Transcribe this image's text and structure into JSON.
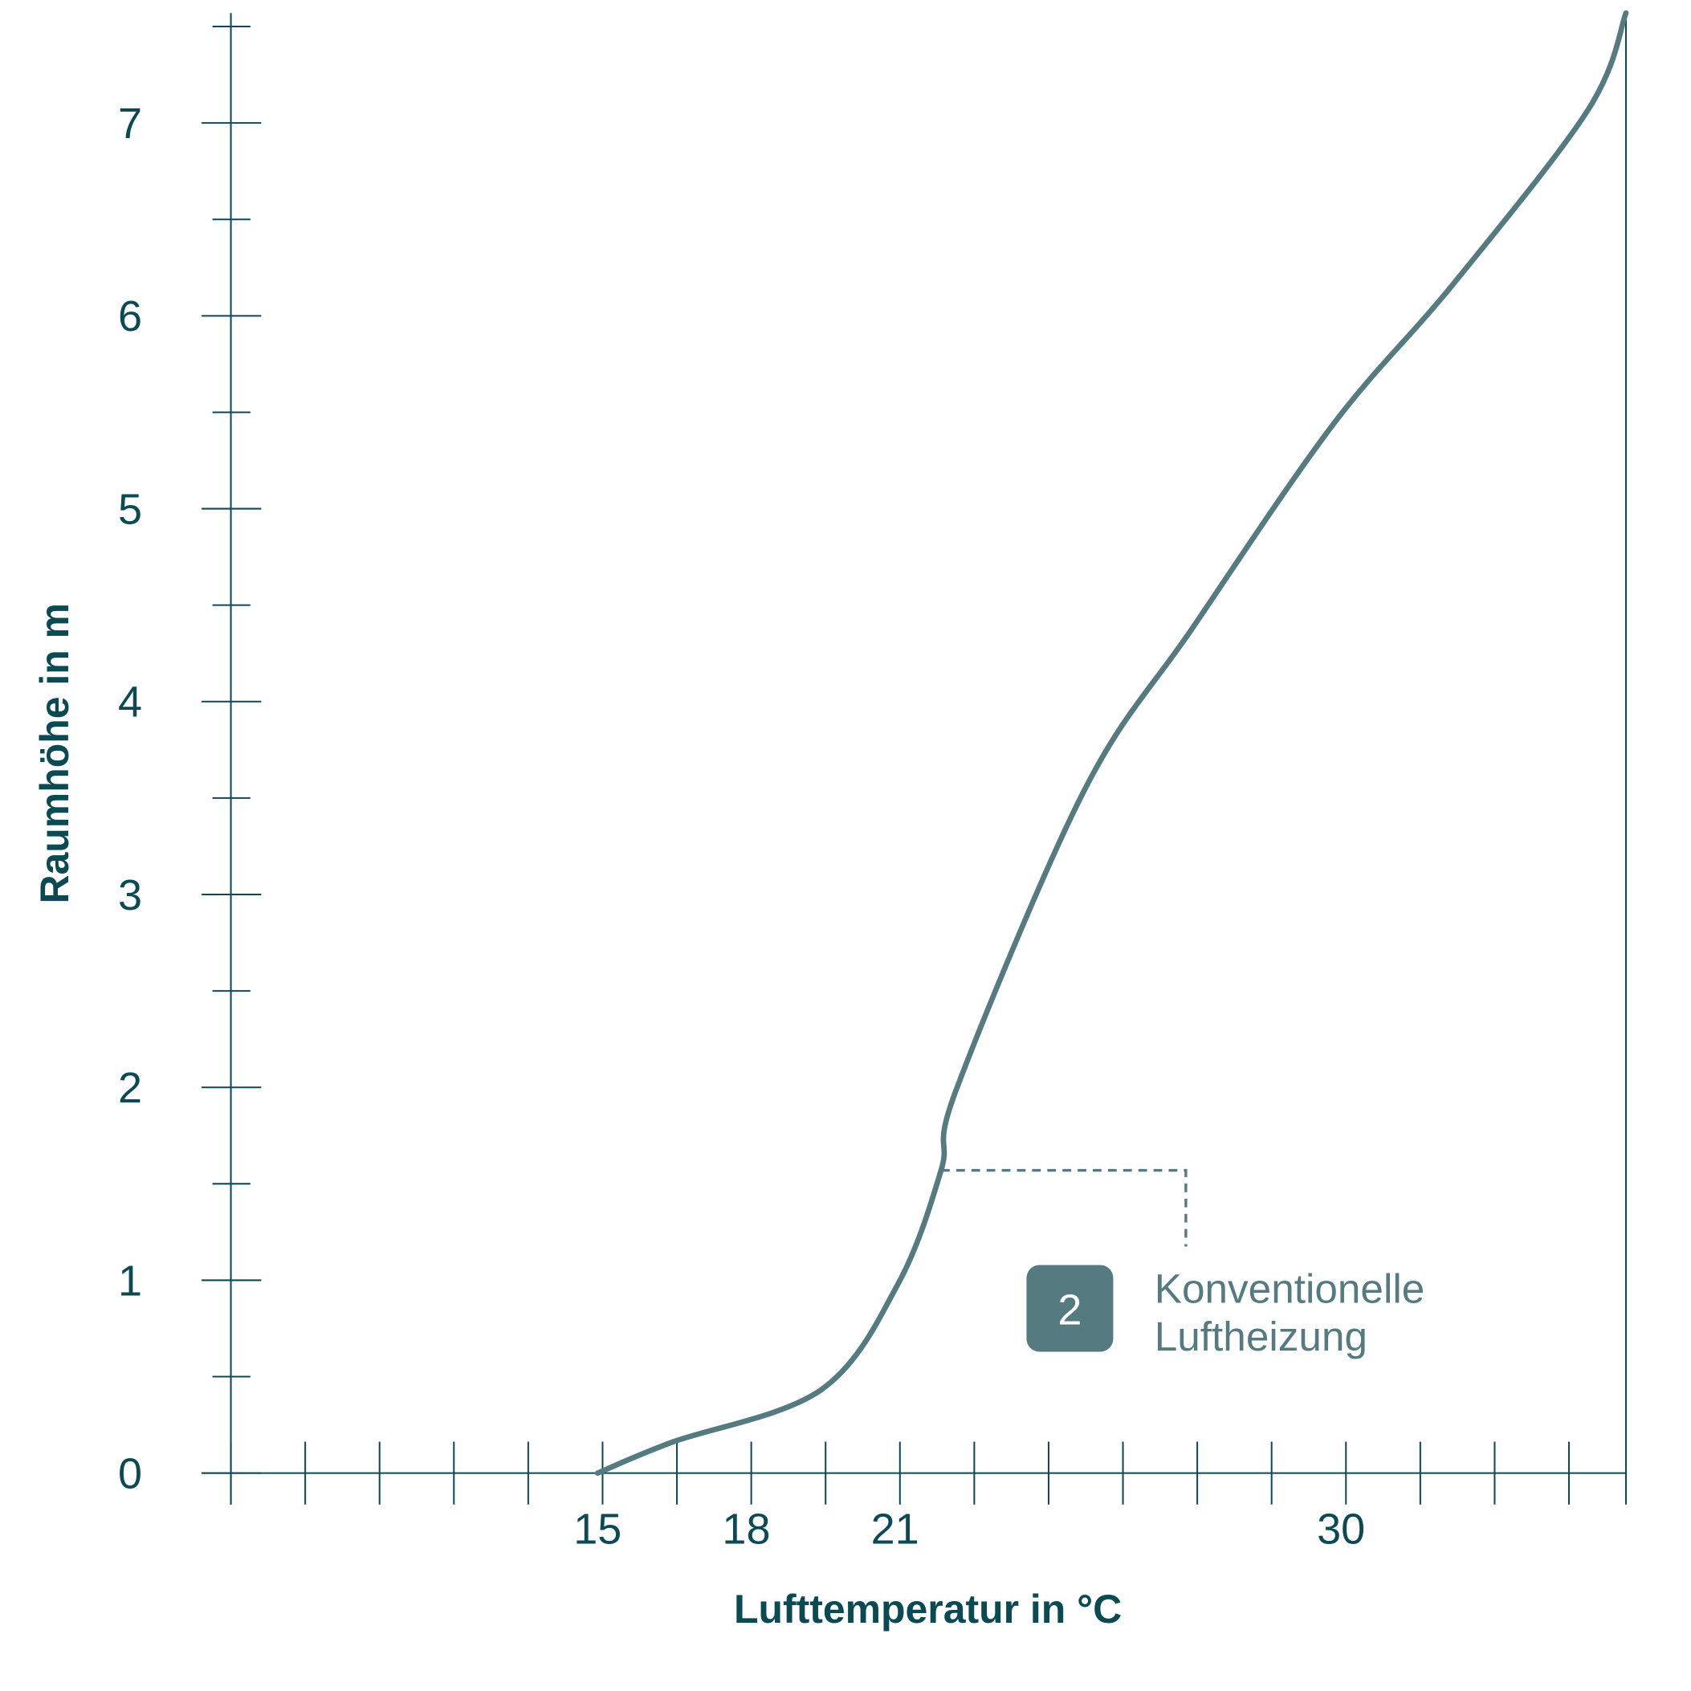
{
  "chart_data": {
    "type": "line",
    "xlabel": "Lufttemperatur in °C",
    "ylabel": "Raumhöhe in m",
    "xlim": [
      7.6,
      35.75
    ],
    "ylim": [
      0,
      7.57
    ],
    "x_tick_labels": [
      15,
      18,
      21,
      30
    ],
    "x_minor_tick_step": 1.5,
    "y_tick_labels": [
      0,
      1,
      2,
      3,
      4,
      5,
      6,
      7
    ],
    "y_minor_tick_step": 0.5,
    "grid": false,
    "series": [
      {
        "color": "#557a80",
        "x": [
          15,
          16.5,
          19.5,
          21.06,
          21.93,
          22.24,
          24.82,
          27.0,
          29.85,
          32.25,
          34.99,
          35.75
        ],
        "y": [
          0,
          0.16,
          0.43,
          0.98,
          1.57,
          1.99,
          3.54,
          4.38,
          5.44,
          6.16,
          7.07,
          7.57
        ]
      }
    ],
    "annotation": {
      "badge": "2",
      "text_line1": "Konventionelle",
      "text_line2": "Luftheizung",
      "anchor": {
        "x": 21.93,
        "y": 1.57
      },
      "color": "#557a80"
    }
  },
  "colors": {
    "axis": "#0b4a52",
    "curve": "#557a80"
  }
}
